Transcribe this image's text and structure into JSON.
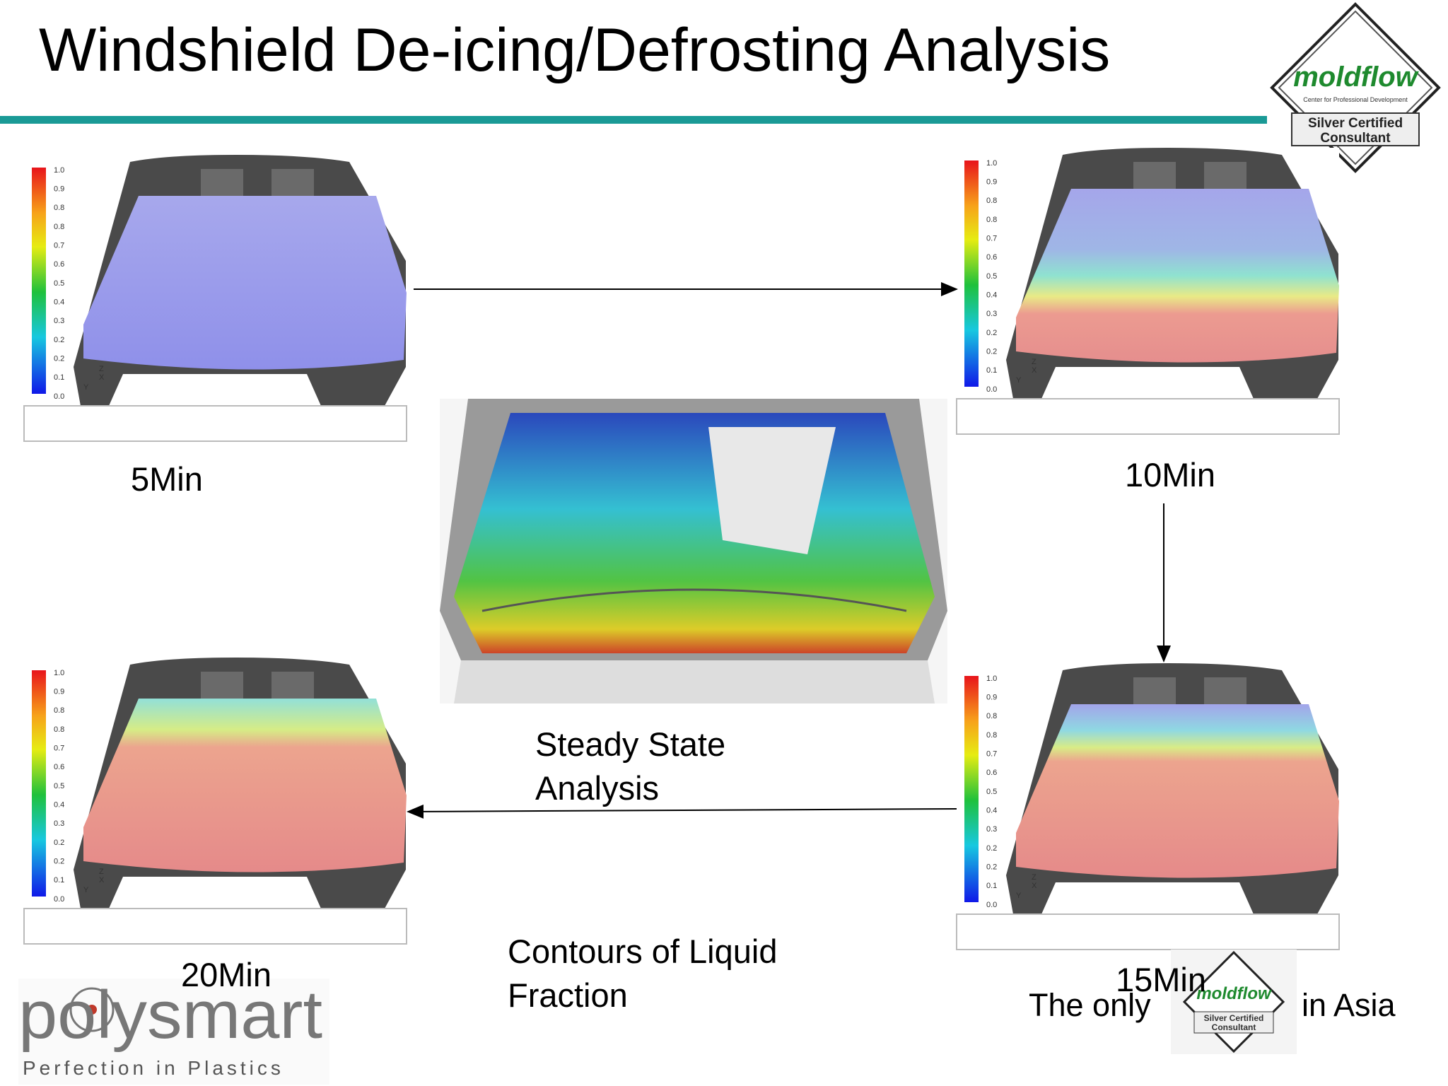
{
  "header": {
    "title": "Windshield De-icing/Defrosting Analysis"
  },
  "logo": {
    "brand": "moldflow",
    "tagline": "Center for Professional Development",
    "badge_line1": "Silver Certified",
    "badge_line2": "Consultant"
  },
  "triad": {
    "z": "Z",
    "x": "X",
    "y": "Y"
  },
  "panels": [
    {
      "label": "5Min",
      "scale": [
        "1.0",
        "0.9",
        "0.8",
        "0.8",
        "0.7",
        "0.6",
        "0.5",
        "0.4",
        "0.3",
        "0.2",
        "0.2",
        "0.1",
        "0.0"
      ]
    },
    {
      "label": "10Min",
      "scale": [
        "1.0",
        "0.9",
        "0.8",
        "0.8",
        "0.7",
        "0.6",
        "0.5",
        "0.4",
        "0.3",
        "0.2",
        "0.2",
        "0.1",
        "0.0"
      ]
    },
    {
      "label": "15Min",
      "scale": [
        "1.0",
        "0.9",
        "0.8",
        "0.8",
        "0.7",
        "0.6",
        "0.5",
        "0.4",
        "0.3",
        "0.2",
        "0.2",
        "0.1",
        "0.0"
      ]
    },
    {
      "label": "20Min",
      "scale": [
        "1.0",
        "0.9",
        "0.8",
        "0.8",
        "0.7",
        "0.6",
        "0.5",
        "0.4",
        "0.3",
        "0.2",
        "0.2",
        "0.1",
        "0.0"
      ]
    }
  ],
  "center": {
    "caption_line1": "Steady State",
    "caption_line2": "Analysis"
  },
  "caption": {
    "line1": "Contours of Liquid",
    "line2": "Fraction"
  },
  "footer": {
    "prefix": "The only",
    "suffix": "in Asia",
    "company": "polysmart",
    "slogan": "Perfection in Plastics"
  }
}
